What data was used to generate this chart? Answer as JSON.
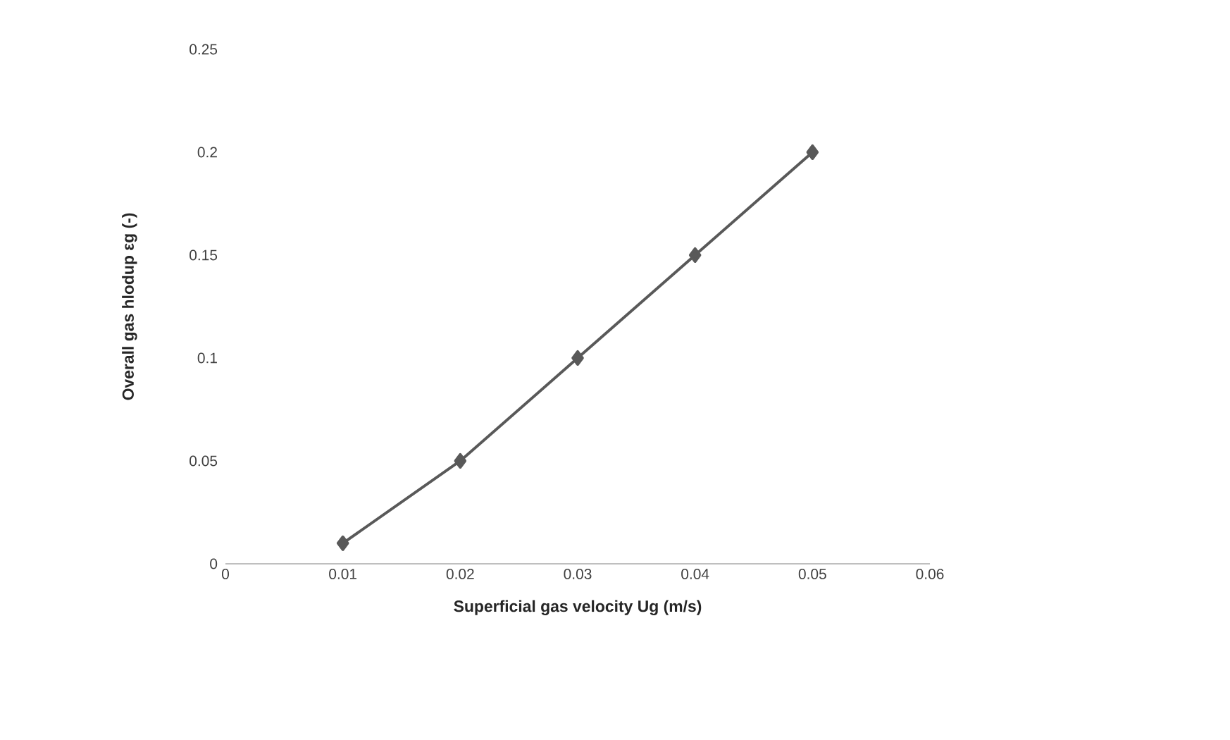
{
  "chart_data": {
    "type": "line",
    "xlabel": "Superficial gas velocity Ug (m/s)",
    "ylabel": "Overall gas hlodup εg (-)",
    "x": [
      0.01,
      0.02,
      0.03,
      0.04,
      0.05
    ],
    "series": [
      {
        "color": "#595959",
        "values": [
          0.01,
          0.05,
          0.1,
          0.15,
          0.2
        ]
      }
    ],
    "xlim": [
      0,
      0.06
    ],
    "xticks": [
      0,
      0.01,
      0.02,
      0.03,
      0.04,
      0.05,
      0.06
    ],
    "ylim": [
      0,
      0.25
    ],
    "yticks": [
      0,
      0.05,
      0.1,
      0.15,
      0.2,
      0.25
    ],
    "marker": "diamond",
    "line_style": "solid",
    "grid": false
  }
}
